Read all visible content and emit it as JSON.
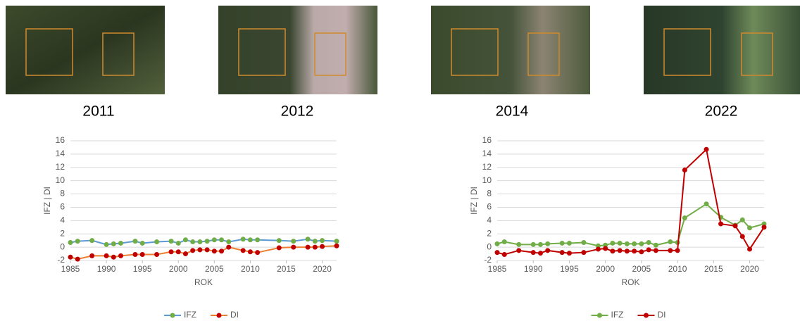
{
  "images": [
    {
      "label": "2011"
    },
    {
      "label": "2012"
    },
    {
      "label": "2014"
    },
    {
      "label": "2022"
    }
  ],
  "chart_data": [
    {
      "type": "line",
      "x_label": "ROK",
      "y_label": "IFZ | DI",
      "x": [
        1985,
        1986,
        1988,
        1990,
        1991,
        1992,
        1994,
        1995,
        1997,
        1999,
        2000,
        2001,
        2002,
        2003,
        2004,
        2005,
        2006,
        2007,
        2009,
        2010,
        2011,
        2014,
        2016,
        2018,
        2019,
        2020,
        2022
      ],
      "series": [
        {
          "name": "IFZ",
          "color": "#5b9bd5",
          "marker_color": "#70ad47",
          "values": [
            0.7,
            0.9,
            1.0,
            0.4,
            0.5,
            0.6,
            0.9,
            0.6,
            0.8,
            0.9,
            0.6,
            1.1,
            0.8,
            0.8,
            0.9,
            1.1,
            1.1,
            0.8,
            1.2,
            1.1,
            1.1,
            1.0,
            0.9,
            1.2,
            0.9,
            1.0,
            0.9
          ]
        },
        {
          "name": "DI",
          "color": "#ed7d31",
          "marker_color": "#c00000",
          "values": [
            -1.5,
            -1.8,
            -1.3,
            -1.3,
            -1.5,
            -1.3,
            -1.1,
            -1.1,
            -1.1,
            -0.7,
            -0.7,
            -1.0,
            -0.5,
            -0.4,
            -0.4,
            -0.6,
            -0.6,
            0.0,
            -0.5,
            -0.7,
            -0.8,
            -0.1,
            0.0,
            0.0,
            0.0,
            0.1,
            0.2
          ]
        }
      ],
      "xlim": [
        1985,
        2022
      ],
      "xticks": [
        1985,
        1990,
        1995,
        2000,
        2005,
        2010,
        2015,
        2020
      ],
      "ylim": [
        -2,
        16
      ],
      "yticks": [
        -2,
        0,
        2,
        4,
        6,
        8,
        10,
        12,
        14,
        16
      ],
      "grid": true,
      "legend": "bottom"
    },
    {
      "type": "line",
      "x_label": "ROK",
      "y_label": "IFZ | DI",
      "x": [
        1985,
        1986,
        1988,
        1990,
        1991,
        1992,
        1994,
        1995,
        1997,
        1999,
        2000,
        2001,
        2002,
        2003,
        2004,
        2005,
        2006,
        2007,
        2009,
        2010,
        2011,
        2014,
        2016,
        2018,
        2019,
        2020,
        2022
      ],
      "series": [
        {
          "name": "IFZ",
          "color": "#70ad47",
          "marker_color": "#70ad47",
          "values": [
            0.5,
            0.8,
            0.4,
            0.4,
            0.4,
            0.5,
            0.6,
            0.6,
            0.7,
            0.2,
            0.3,
            0.6,
            0.6,
            0.5,
            0.5,
            0.5,
            0.7,
            0.3,
            0.8,
            0.7,
            4.4,
            6.5,
            4.5,
            3.3,
            4.1,
            2.9,
            3.5
          ]
        },
        {
          "name": "DI",
          "color": "#c00000",
          "marker_color": "#c00000",
          "values": [
            -0.8,
            -1.1,
            -0.5,
            -0.8,
            -0.9,
            -0.5,
            -0.8,
            -0.9,
            -0.8,
            -0.3,
            -0.2,
            -0.6,
            -0.5,
            -0.6,
            -0.6,
            -0.7,
            -0.4,
            -0.5,
            -0.5,
            -0.5,
            11.6,
            14.7,
            3.5,
            3.2,
            1.6,
            -0.3,
            3.0
          ]
        }
      ],
      "xlim": [
        1985,
        2022
      ],
      "xticks": [
        1985,
        1990,
        1995,
        2000,
        2005,
        2010,
        2015,
        2020
      ],
      "ylim": [
        -2,
        16
      ],
      "yticks": [
        -2,
        0,
        2,
        4,
        6,
        8,
        10,
        12,
        14,
        16
      ],
      "grid": true,
      "legend": "bottom"
    }
  ]
}
